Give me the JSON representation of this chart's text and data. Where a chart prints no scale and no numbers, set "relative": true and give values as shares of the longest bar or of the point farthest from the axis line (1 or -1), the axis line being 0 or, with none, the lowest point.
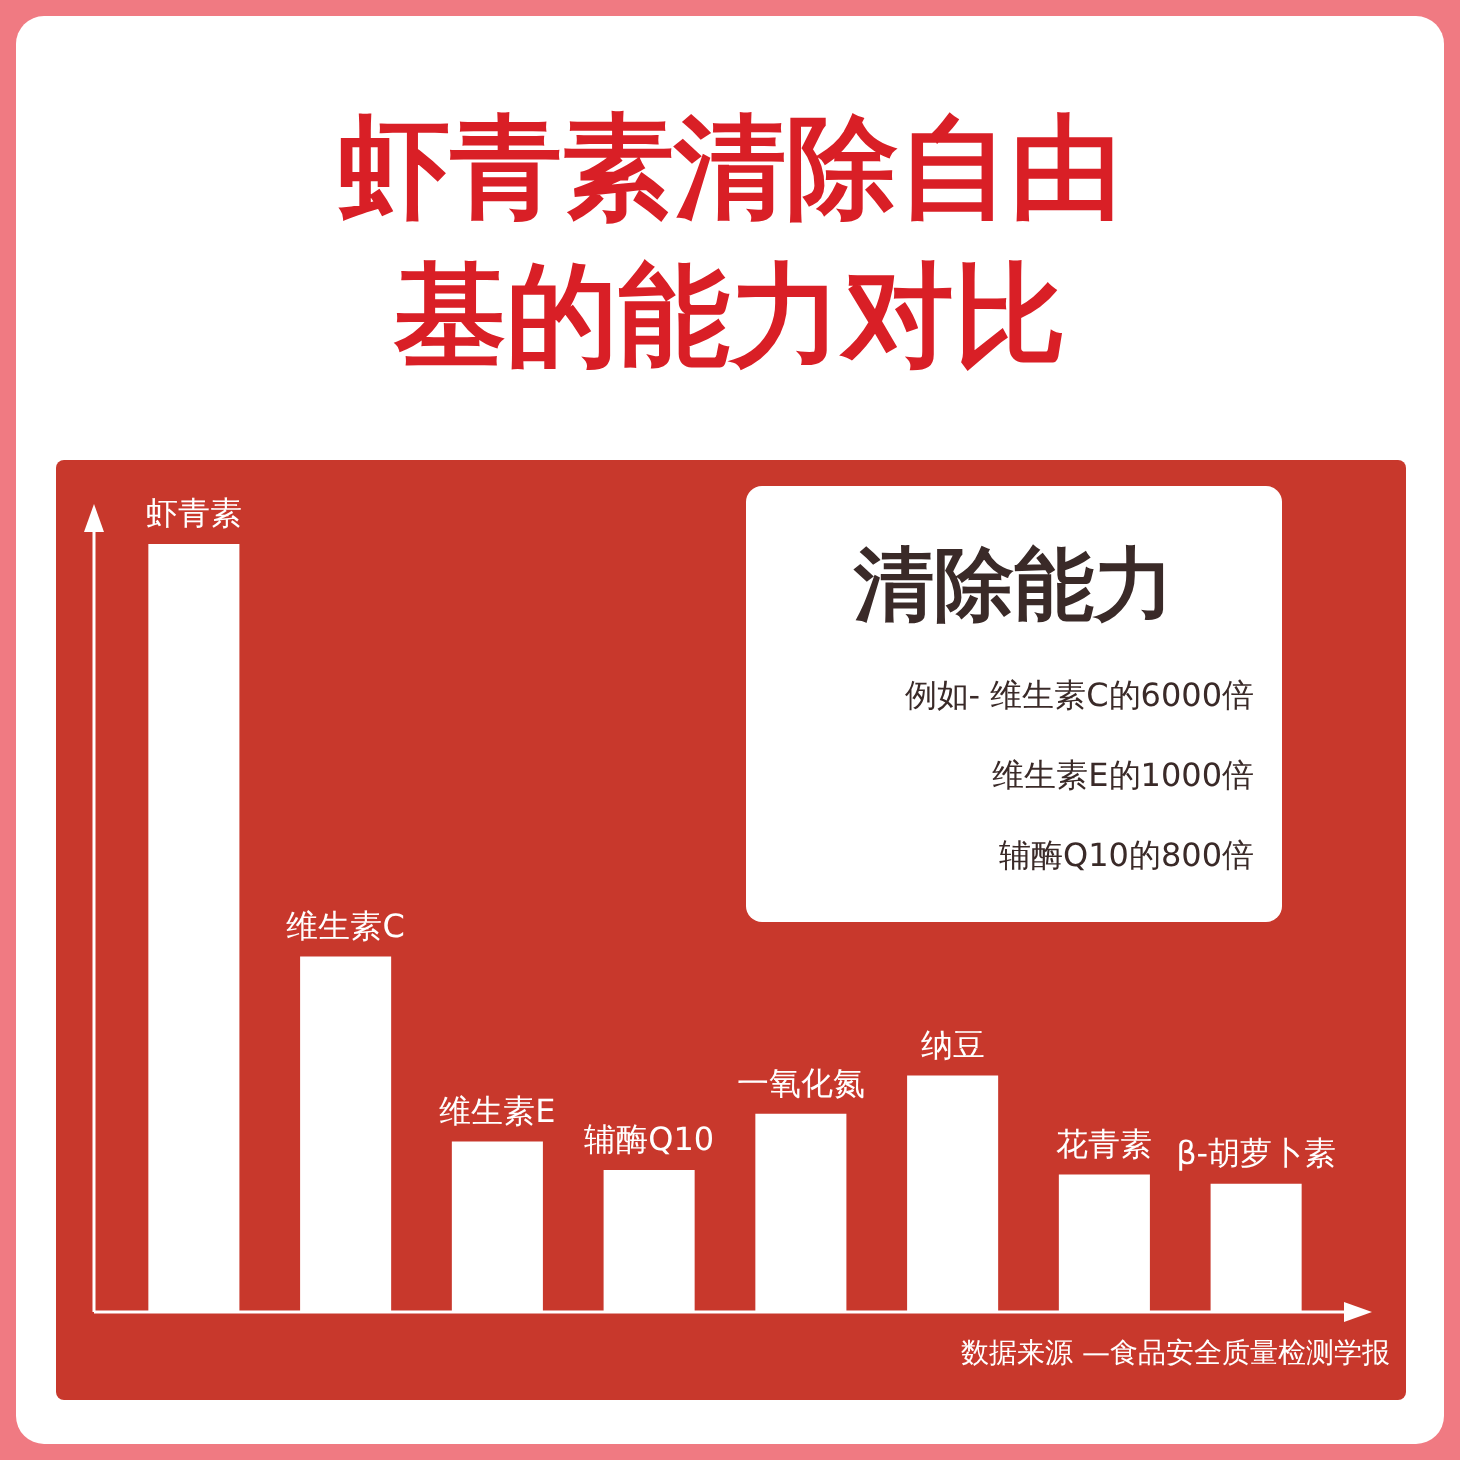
{
  "chart_data": {
    "type": "bar",
    "title": "虾青素清除自由基的能力对比",
    "relative": true,
    "categories": [
      "虾青素",
      "维生素C",
      "维生素E",
      "辅酶Q10",
      "一氧化氮",
      "纳豆",
      "花青素",
      "β-胡萝卜素"
    ],
    "values": [
      1,
      0.463,
      0.222,
      0.185,
      0.258,
      0.308,
      0.179,
      0.167
    ],
    "color": "#ffffff",
    "annotations": [
      "清除能力",
      "例如- 维生素C的6000倍",
      "维生素E的1000倍",
      "辅酶Q10的800倍",
      "数据来源 —食品安全质量检测学报"
    ]
  }
}
